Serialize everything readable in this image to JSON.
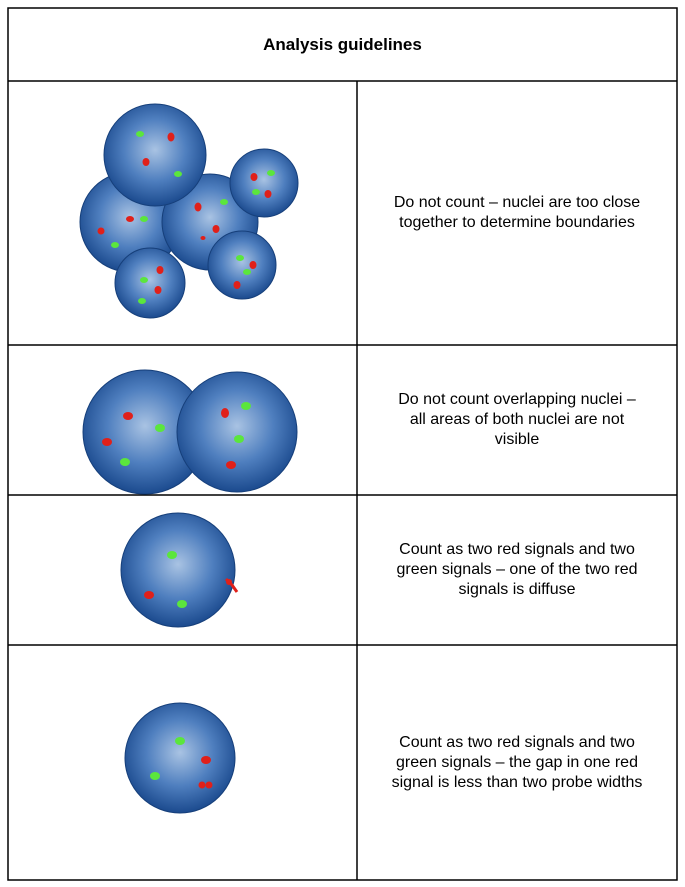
{
  "header": {
    "title": "Analysis guidelines"
  },
  "rows": [
    {
      "text": "Do not count – nuclei are too close together to determine boundaries"
    },
    {
      "text": "Do not count overlapping nuclei – all areas of both nuclei are not visible"
    },
    {
      "text": "Count as two red signals and two green signals – one of the two red signals is diffuse"
    },
    {
      "text": "Count as two red signals and two green signals – the gap in one red signal is less than two probe widths"
    }
  ]
}
